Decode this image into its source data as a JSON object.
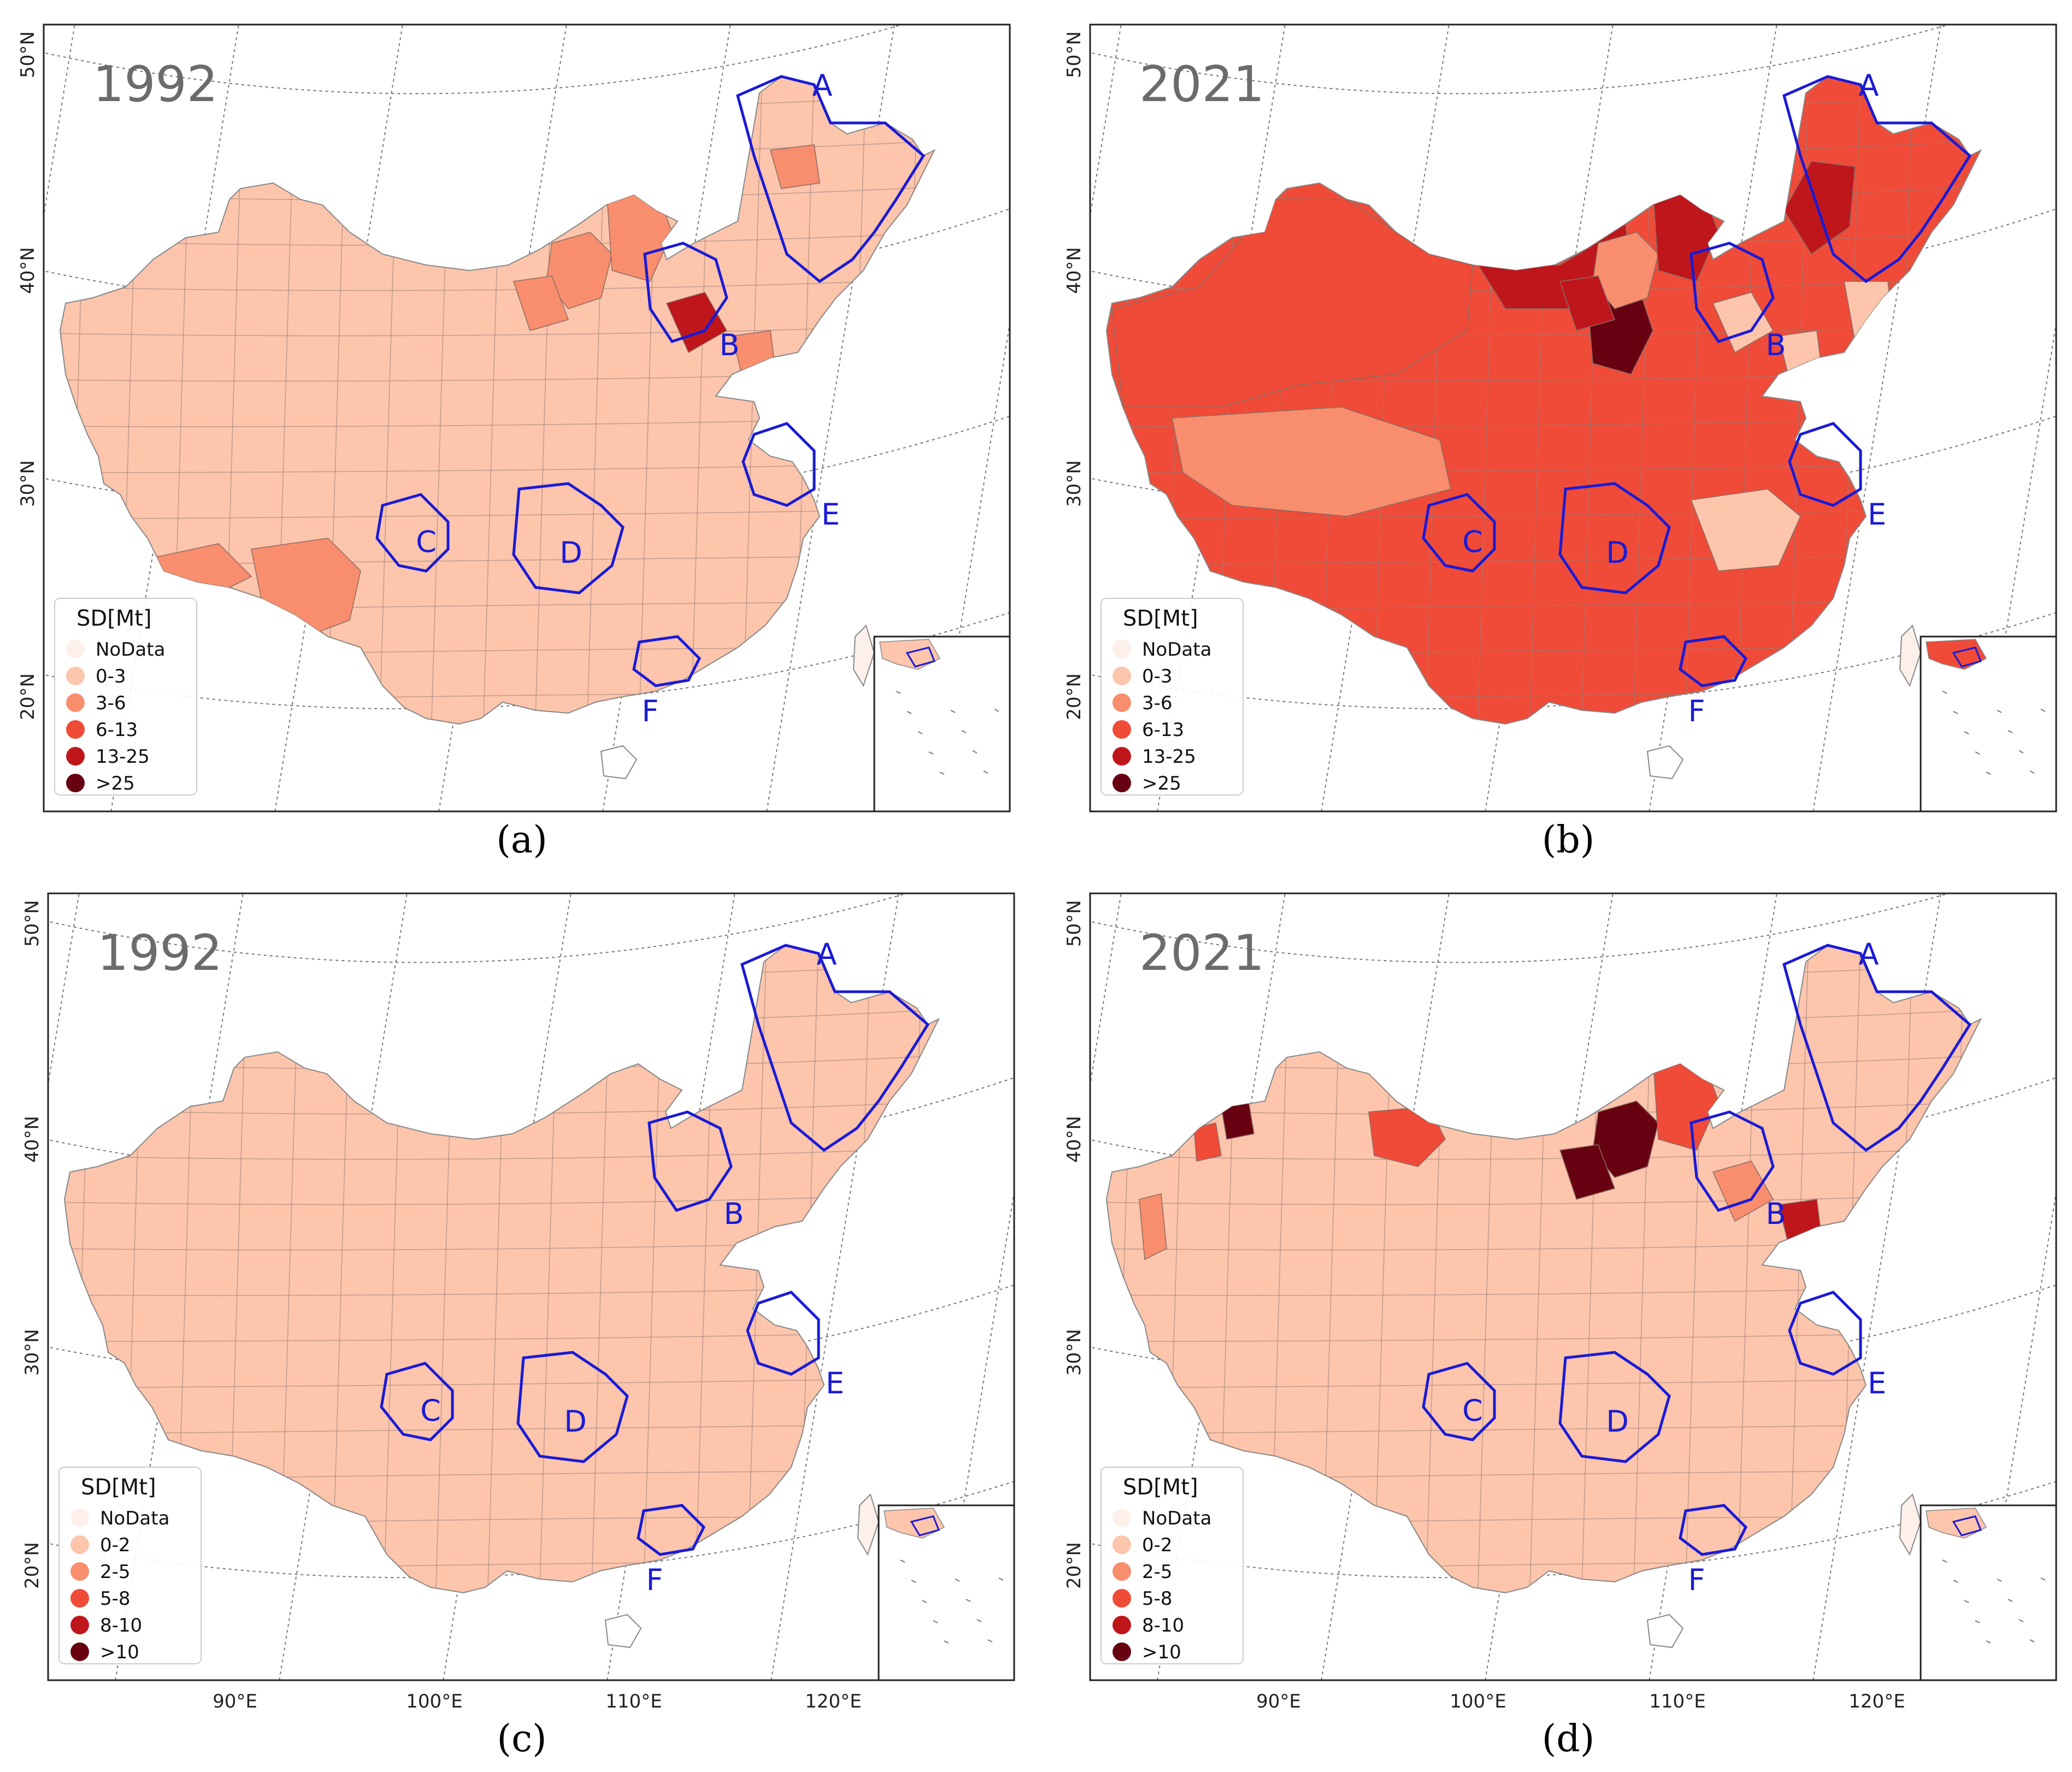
{
  "figure": {
    "panels": [
      {
        "id": "a",
        "caption": "(a)",
        "year": "1992",
        "legend": {
          "title": "SD[Mt]",
          "items": [
            {
              "label": "NoData",
              "color": "#fdf0ea"
            },
            {
              "label": "0-3",
              "color": "#fcc5ac"
            },
            {
              "label": "3-6",
              "color": "#f88e6d"
            },
            {
              "label": "6-13",
              "color": "#ef4b38"
            },
            {
              "label": "13-25",
              "color": "#bf161c"
            },
            {
              "label": ">25",
              "color": "#670010"
            }
          ]
        },
        "base_color": "#fcc5ac",
        "hotspots": [
          {
            "color": "#f88e6d"
          },
          {
            "color": "#f88e6d"
          },
          {
            "color": "#ef4b38"
          },
          {
            "color": "#bf161c"
          },
          {
            "color": "#f88e6d"
          },
          {
            "color": "#f88e6d"
          },
          {
            "color": "#ef4b38"
          }
        ]
      },
      {
        "id": "b",
        "caption": "(b)",
        "year": "2021",
        "legend": {
          "title": "SD[Mt]",
          "items": [
            {
              "label": "NoData",
              "color": "#fdf0ea"
            },
            {
              "label": "0-3",
              "color": "#fcc5ac"
            },
            {
              "label": "3-6",
              "color": "#f88e6d"
            },
            {
              "label": "6-13",
              "color": "#ef4b38"
            },
            {
              "label": "13-25",
              "color": "#bf161c"
            },
            {
              "label": ">25",
              "color": "#670010"
            }
          ]
        },
        "base_color": "#ef4b38",
        "hotspots": [
          {
            "color": "#f88e6d"
          },
          {
            "color": "#bf161c"
          },
          {
            "color": "#670010"
          },
          {
            "color": "#fcc5ac"
          },
          {
            "color": "#bf161c"
          },
          {
            "color": "#fcc5ac"
          },
          {
            "color": "#670010"
          }
        ]
      },
      {
        "id": "c",
        "caption": "(c)",
        "year": "1992",
        "legend": {
          "title": "SD[Mt]",
          "items": [
            {
              "label": "NoData",
              "color": "#fdf0ea"
            },
            {
              "label": "0-2",
              "color": "#fcc5ac"
            },
            {
              "label": "2-5",
              "color": "#f88e6d"
            },
            {
              "label": "5-8",
              "color": "#ef4b38"
            },
            {
              "label": "8-10",
              "color": "#bf161c"
            },
            {
              "label": ">10",
              "color": "#670010"
            }
          ]
        },
        "base_color": "#fcc5ac",
        "hotspots": []
      },
      {
        "id": "d",
        "caption": "(d)",
        "year": "2021",
        "legend": {
          "title": "SD[Mt]",
          "items": [
            {
              "label": "NoData",
              "color": "#fdf0ea"
            },
            {
              "label": "0-2",
              "color": "#fcc5ac"
            },
            {
              "label": "2-5",
              "color": "#f88e6d"
            },
            {
              "label": "5-8",
              "color": "#ef4b38"
            },
            {
              "label": "8-10",
              "color": "#bf161c"
            },
            {
              "label": ">10",
              "color": "#670010"
            }
          ]
        },
        "base_color": "#fcc5ac",
        "hotspots": [
          {
            "color": "#670010"
          },
          {
            "color": "#ef4b38"
          },
          {
            "color": "#ef4b38"
          },
          {
            "color": "#f88e6d"
          },
          {
            "color": "#670010"
          },
          {
            "color": "#bf161c"
          },
          {
            "color": "#670010"
          }
        ]
      }
    ],
    "lat_labels": [
      "50°N",
      "40°N",
      "30°N",
      "20°N"
    ],
    "lon_labels": [
      "90°E",
      "100°E",
      "110°E",
      "120°E"
    ],
    "region_labels": [
      "A",
      "B",
      "C",
      "D",
      "E",
      "F"
    ],
    "colors": {
      "region_outline": "#1a1ad6",
      "nodata": "#fdf0ea"
    }
  }
}
